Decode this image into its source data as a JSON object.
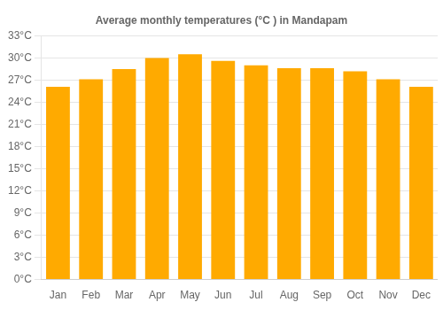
{
  "chart_data": {
    "type": "bar",
    "title": "Average monthly temperatures (°C ) in Mandapam",
    "categories": [
      "Jan",
      "Feb",
      "Mar",
      "Apr",
      "May",
      "Jun",
      "Jul",
      "Aug",
      "Sep",
      "Oct",
      "Nov",
      "Dec"
    ],
    "values": [
      26.1,
      27.1,
      28.5,
      30.0,
      30.5,
      29.6,
      29.0,
      28.6,
      28.6,
      28.2,
      27.1,
      26.1
    ],
    "color": "#FFAA00",
    "ylim": [
      0,
      33
    ],
    "yticks": [
      {
        "value": 0,
        "label": "0°C"
      },
      {
        "value": 3,
        "label": "3°C"
      },
      {
        "value": 6,
        "label": "6°C"
      },
      {
        "value": 9,
        "label": "9°C"
      },
      {
        "value": 12,
        "label": "12°C"
      },
      {
        "value": 15,
        "label": "15°C"
      },
      {
        "value": 18,
        "label": "18°C"
      },
      {
        "value": 21,
        "label": "21°C"
      },
      {
        "value": 24,
        "label": "24°C"
      },
      {
        "value": 27,
        "label": "27°C"
      },
      {
        "value": 30,
        "label": "30°C"
      },
      {
        "value": 33,
        "label": "33°C"
      }
    ],
    "grid": true
  }
}
